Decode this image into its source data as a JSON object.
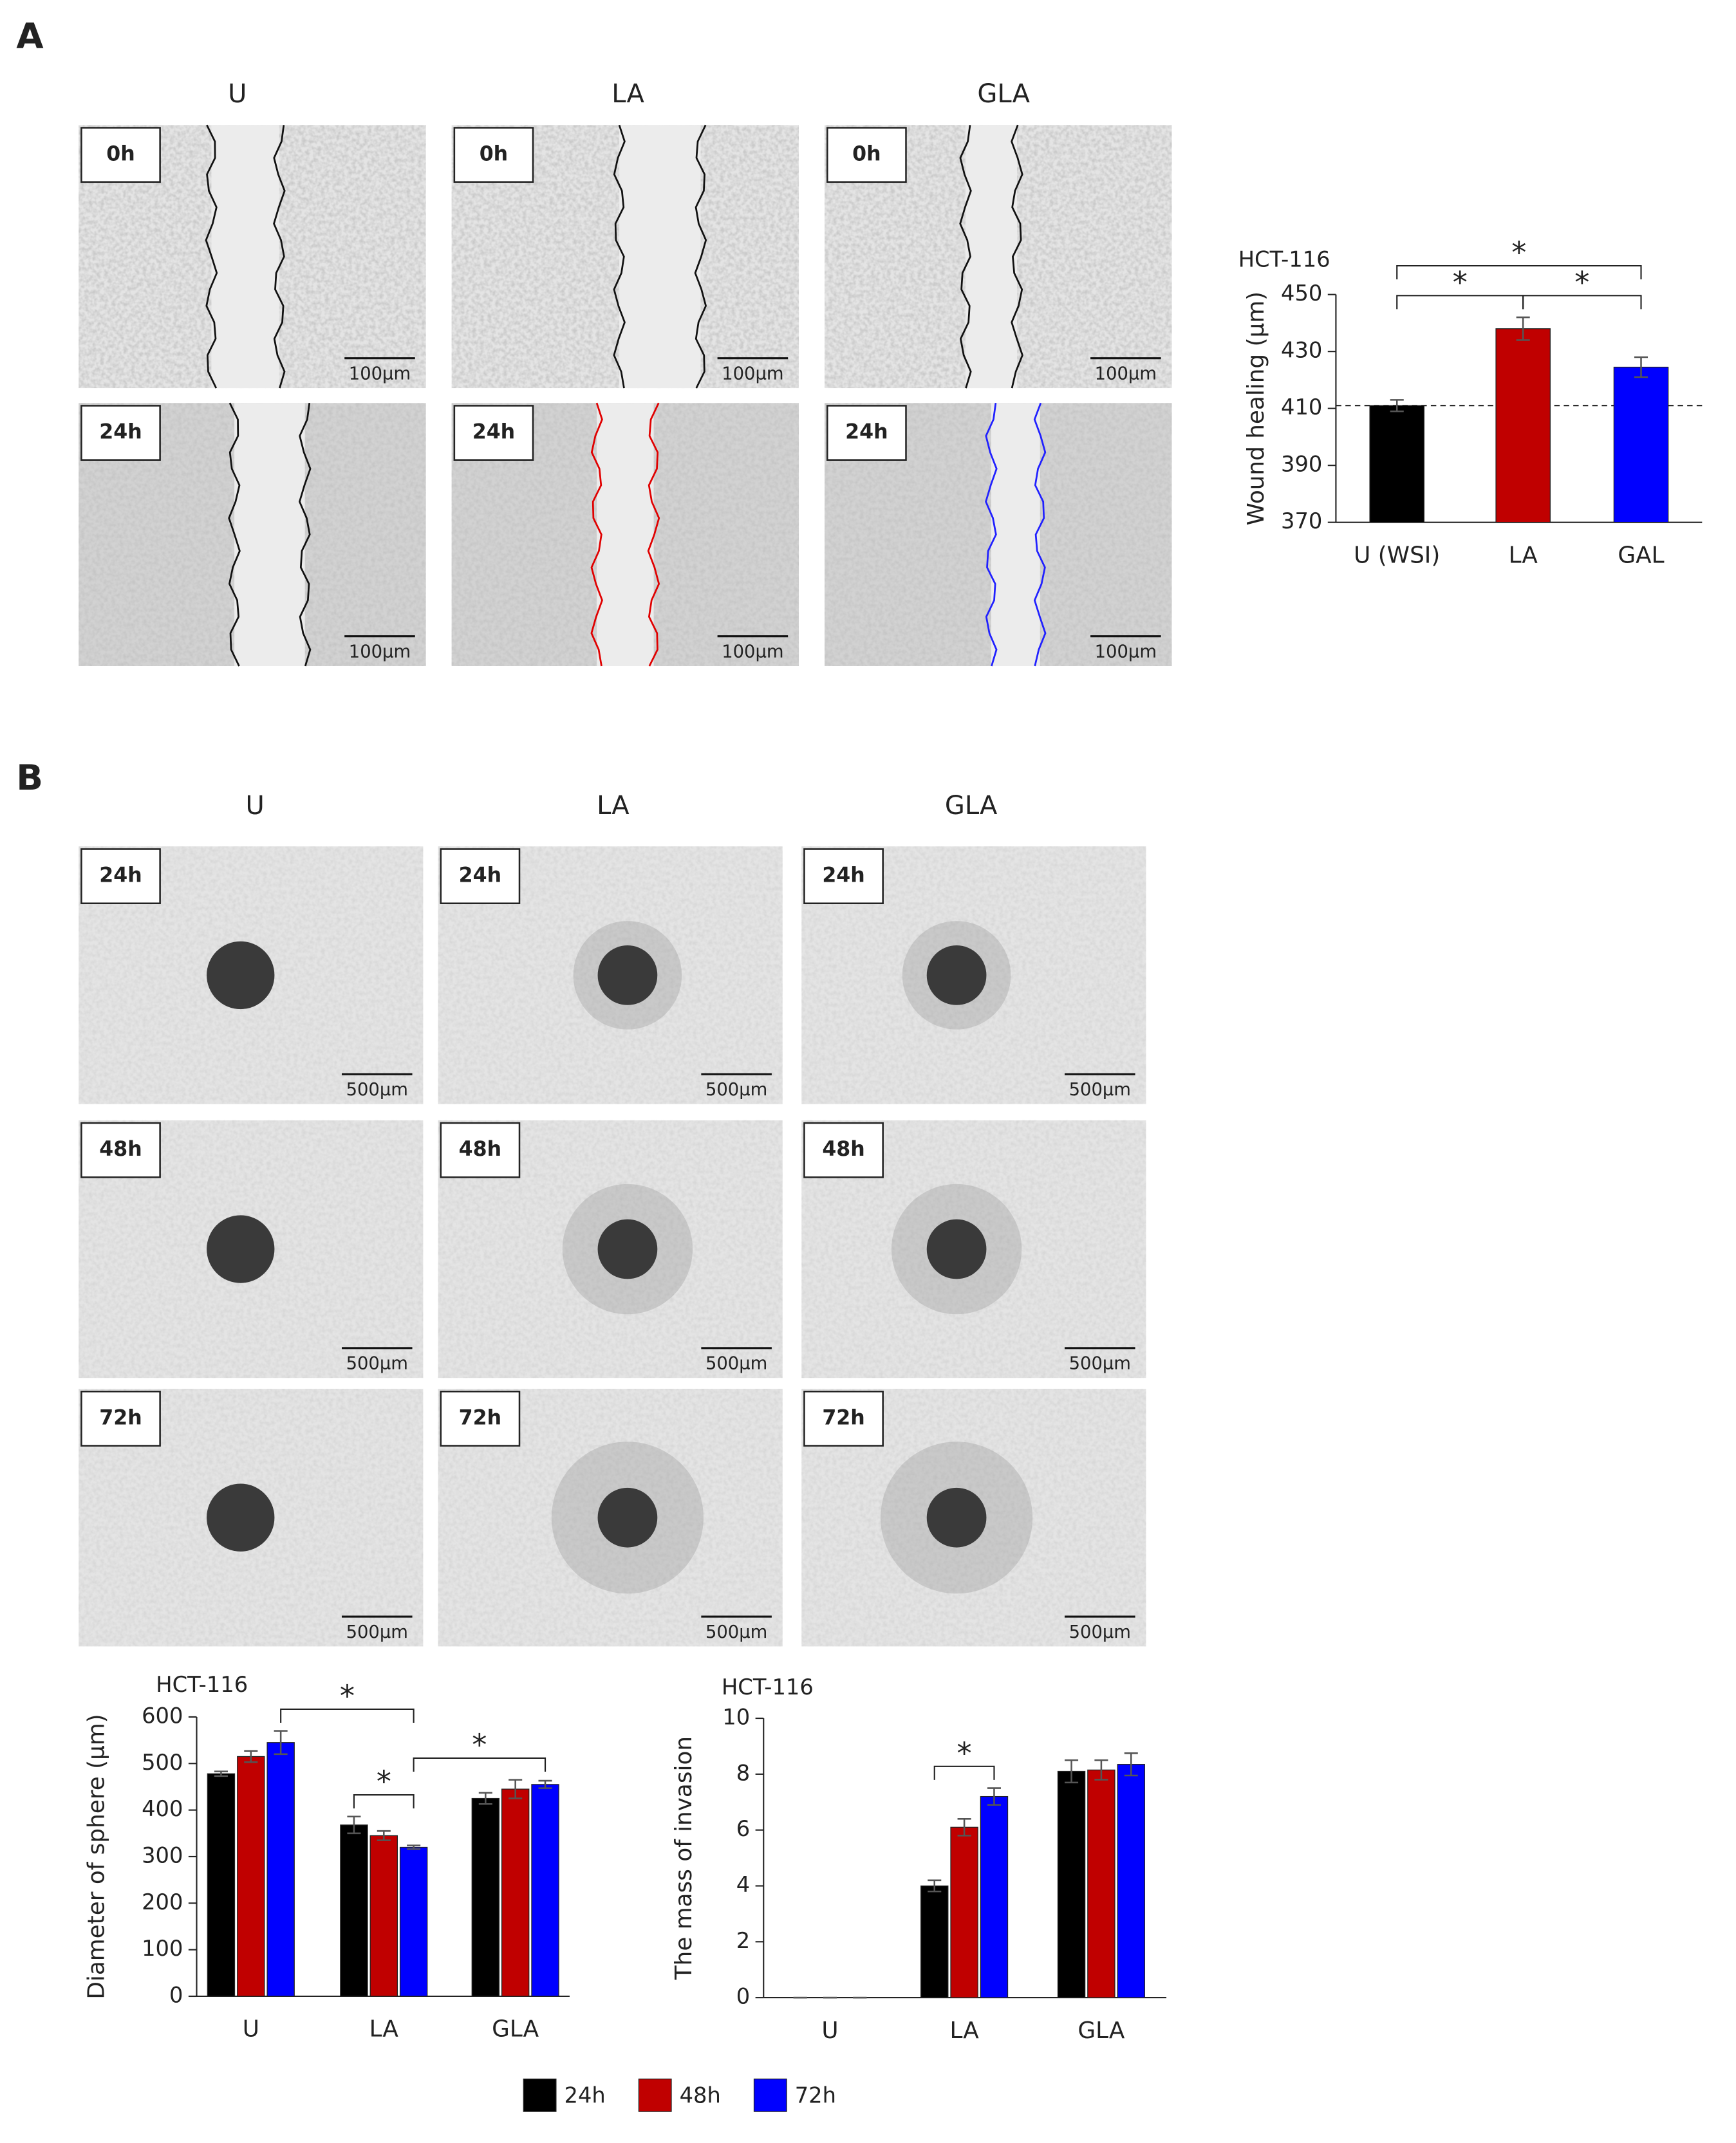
{
  "panels": [
    {
      "label": "A",
      "columns": [
        "U",
        "LA",
        "GLA"
      ],
      "rows": [
        "0h",
        "24h"
      ],
      "scale_bar": "100μm"
    },
    {
      "label": "B",
      "columns": [
        "U",
        "LA",
        "GLA"
      ],
      "rows": [
        "24h",
        "48h",
        "72h"
      ],
      "scale_bar": "500μm"
    }
  ],
  "chart_data": [
    {
      "type": "bar",
      "title": "HCT-116",
      "y_label": "Wound healing (μm)",
      "categories": [
        "U (WSI)",
        "LA",
        "GAL"
      ],
      "values": [
        411,
        438,
        424.5
      ],
      "errors": [
        2,
        4,
        3.5
      ],
      "colors": [
        "#000000",
        "#c00000",
        "#0000ff"
      ],
      "ylim": [
        370,
        450
      ],
      "yticks": [
        370,
        390,
        410,
        430,
        450
      ],
      "reference_line": 411,
      "significance": [
        {
          "from": [
            0,
            0
          ],
          "to": [
            1,
            0
          ],
          "label": "*"
        },
        {
          "from": [
            1,
            0
          ],
          "to": [
            2,
            0
          ],
          "label": "*"
        },
        {
          "from": [
            0,
            0
          ],
          "to": [
            2,
            0
          ],
          "label": "*"
        }
      ]
    },
    {
      "type": "grouped-bar",
      "title": "HCT-116",
      "y_label": "Diameter of sphere (μm)",
      "categories": [
        "U",
        "LA",
        "GLA"
      ],
      "series": [
        {
          "name": "24h",
          "color": "#000000",
          "values": [
            478,
            368,
            425
          ],
          "errors": [
            5,
            18,
            12
          ]
        },
        {
          "name": "48h",
          "color": "#c00000",
          "values": [
            515,
            345,
            445
          ],
          "errors": [
            12,
            10,
            20
          ]
        },
        {
          "name": "72h",
          "color": "#0000ff",
          "values": [
            545,
            320,
            455
          ],
          "errors": [
            25,
            4,
            8
          ]
        }
      ],
      "ylim": [
        0,
        600
      ],
      "yticks": [
        0,
        100,
        200,
        300,
        400,
        500,
        600
      ],
      "significance": [
        {
          "from": [
            0,
            2
          ],
          "to": [
            1,
            2
          ],
          "label": "*"
        },
        {
          "from": [
            1,
            0
          ],
          "to": [
            1,
            2
          ],
          "label": "*"
        },
        {
          "from": [
            1,
            2
          ],
          "to": [
            2,
            2
          ],
          "label": "*"
        }
      ]
    },
    {
      "type": "grouped-bar",
      "title": "HCT-116",
      "y_label": "The mass of invasion",
      "categories": [
        "U",
        "LA",
        "GLA"
      ],
      "series": [
        {
          "color": "#000000",
          "values": [
            0,
            4,
            8.1
          ],
          "errors": [
            0,
            0.2,
            0.4
          ]
        },
        {
          "color": "#c00000",
          "values": [
            0,
            6.1,
            8.15
          ],
          "errors": [
            0,
            0.3,
            0.35
          ]
        },
        {
          "color": "#0000ff",
          "values": [
            0,
            7.2,
            8.35
          ],
          "errors": [
            0,
            0.3,
            0.4
          ]
        }
      ],
      "ylim": [
        0,
        10
      ],
      "yticks": [
        0,
        2,
        4,
        6,
        8,
        10
      ],
      "significance": [
        {
          "from": [
            1,
            0
          ],
          "to": [
            1,
            2
          ],
          "label": "*"
        }
      ]
    }
  ]
}
